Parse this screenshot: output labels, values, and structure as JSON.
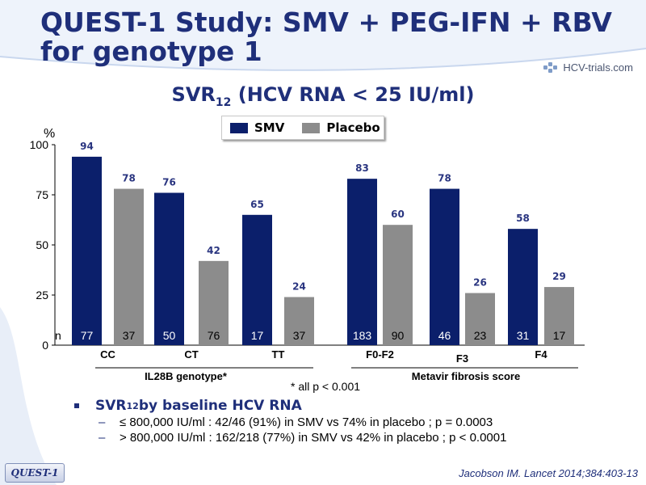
{
  "title_line1": "QUEST-1 Study: SMV + PEG-IFN + RBV",
  "title_line2": "for genotype 1",
  "logo_text": "HCV-trials.com",
  "subtitle_main": "SVR",
  "subtitle_sub": "12",
  "subtitle_rest": " (HCV RNA < 25 IU/ml)",
  "legend": [
    {
      "label": "SMV",
      "color": "#0b1f6b"
    },
    {
      "label": "Placebo",
      "color": "#8c8c8c"
    }
  ],
  "chart_data": {
    "type": "bar",
    "ylabel": "%",
    "ylim": [
      0,
      100
    ],
    "yticks": [
      "0",
      "25",
      "50",
      "75",
      "100"
    ],
    "n_label": "n",
    "groups": [
      {
        "label": "CC",
        "parent": "IL28B genotype*",
        "smv": 94,
        "placebo": 78,
        "n_smv": "77",
        "n_placebo": "37"
      },
      {
        "label": "CT",
        "parent": "IL28B genotype*",
        "smv": 76,
        "placebo": 42,
        "n_smv": "50",
        "n_placebo": "76"
      },
      {
        "label": "TT",
        "parent": "IL28B genotype*",
        "smv": 65,
        "placebo": 24,
        "n_smv": "17",
        "n_placebo": "37"
      },
      {
        "label": "F0-F2",
        "parent": "Metavir fibrosis score",
        "smv": 83,
        "placebo": 60,
        "n_smv": "183",
        "n_placebo": "90"
      },
      {
        "label": "F3",
        "parent": "Metavir fibrosis score",
        "smv": 78,
        "placebo": 26,
        "n_smv": "46",
        "n_placebo": "23"
      },
      {
        "label": "F4",
        "parent": "Metavir fibrosis score",
        "smv": 58,
        "placebo": 29,
        "n_smv": "31",
        "n_placebo": "17"
      }
    ],
    "parent_labels": [
      "IL28B genotype*",
      "Metavir fibrosis score"
    ],
    "colors": {
      "smv": "#0b1f6b",
      "placebo": "#8c8c8c",
      "value_label": "#2a3580"
    }
  },
  "footnote": "* all p < 0.001",
  "bullet": {
    "main": "SVR",
    "main_sub": "12",
    "main_rest": " by baseline HCV RNA"
  },
  "sub_bullets": [
    {
      "dash": "–",
      "text": "≤ 800,000 IU/ml : 42/46 (91%) in SMV vs 74% in placebo ; p = 0.0003"
    },
    {
      "dash": "–",
      "text": "> 800,000 IU/ml : 162/218 (77%) in SMV vs 42% in placebo ; p < 0.0001"
    }
  ],
  "badge": "QUEST-1",
  "citation": "Jacobson IM. Lancet 2014;384:403-13"
}
